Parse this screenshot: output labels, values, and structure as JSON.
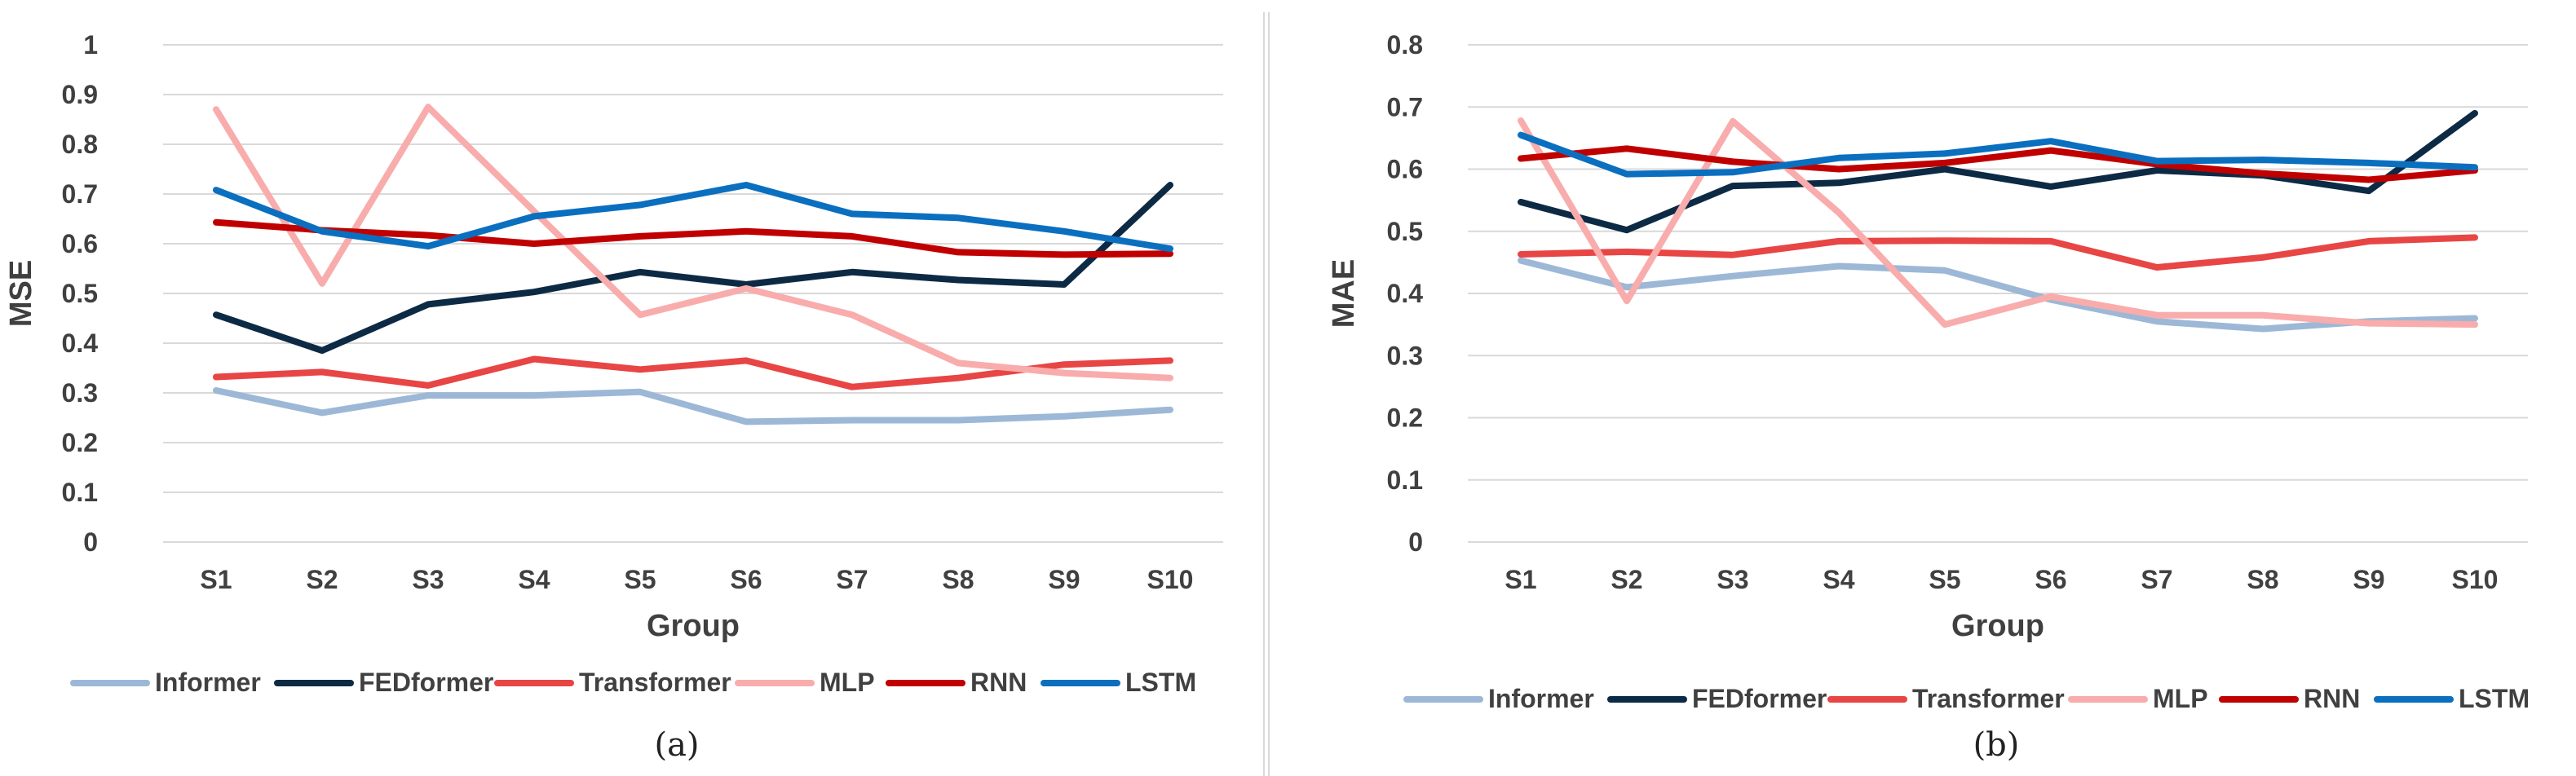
{
  "chart_data": [
    {
      "type": "line",
      "categories": [
        "S1",
        "S2",
        "S3",
        "S4",
        "S5",
        "S6",
        "S7",
        "S8",
        "S9",
        "S10"
      ],
      "xlabel": "Group",
      "ylabel": "MSE",
      "ylim": [
        0,
        1
      ],
      "yticks": [
        "0",
        "0.1",
        "0.2",
        "0.3",
        "0.4",
        "0.5",
        "0.6",
        "0.7",
        "0.8",
        "0.9",
        "1"
      ],
      "caption": "(a)",
      "series": [
        {
          "name": "Informer",
          "color": "#9DB8D6",
          "values": [
            0.305,
            0.26,
            0.295,
            0.295,
            0.302,
            0.242,
            0.245,
            0.245,
            0.253,
            0.266
          ]
        },
        {
          "name": "FEDformer",
          "color": "#0D2A45",
          "values": [
            0.457,
            0.385,
            0.478,
            0.503,
            0.543,
            0.518,
            0.543,
            0.527,
            0.518,
            0.718
          ]
        },
        {
          "name": "Transformer",
          "color": "#E84545",
          "values": [
            0.332,
            0.342,
            0.315,
            0.368,
            0.347,
            0.365,
            0.312,
            0.33,
            0.357,
            0.365
          ]
        },
        {
          "name": "MLP",
          "color": "#F9ACAC",
          "values": [
            0.87,
            0.52,
            0.875,
            0.665,
            0.457,
            0.51,
            0.457,
            0.36,
            0.34,
            0.33
          ]
        },
        {
          "name": "RNN",
          "color": "#C00000",
          "values": [
            0.643,
            0.627,
            0.617,
            0.6,
            0.615,
            0.625,
            0.615,
            0.583,
            0.578,
            0.58
          ]
        },
        {
          "name": "LSTM",
          "color": "#0B6FC0",
          "values": [
            0.708,
            0.625,
            0.595,
            0.655,
            0.678,
            0.718,
            0.66,
            0.652,
            0.625,
            0.59
          ]
        }
      ]
    },
    {
      "type": "line",
      "categories": [
        "S1",
        "S2",
        "S3",
        "S4",
        "S5",
        "S6",
        "S7",
        "S8",
        "S9",
        "S10"
      ],
      "xlabel": "Group",
      "ylabel": "MAE",
      "ylim": [
        0,
        0.8
      ],
      "yticks": [
        "0",
        "0.1",
        "0.2",
        "0.3",
        "0.4",
        "0.5",
        "0.6",
        "0.7",
        "0.8"
      ],
      "caption": "(b)",
      "series": [
        {
          "name": "Informer",
          "color": "#9DB8D6",
          "values": [
            0.453,
            0.41,
            0.428,
            0.444,
            0.437,
            0.39,
            0.355,
            0.343,
            0.355,
            0.36
          ]
        },
        {
          "name": "FEDformer",
          "color": "#0D2A45",
          "values": [
            0.547,
            0.502,
            0.573,
            0.578,
            0.6,
            0.572,
            0.598,
            0.59,
            0.565,
            0.69
          ]
        },
        {
          "name": "Transformer",
          "color": "#E84545",
          "values": [
            0.463,
            0.467,
            0.462,
            0.484,
            0.485,
            0.484,
            0.442,
            0.458,
            0.484,
            0.49
          ]
        },
        {
          "name": "MLP",
          "color": "#F9ACAC",
          "values": [
            0.678,
            0.388,
            0.677,
            0.53,
            0.35,
            0.395,
            0.365,
            0.365,
            0.352,
            0.35
          ]
        },
        {
          "name": "RNN",
          "color": "#C00000",
          "values": [
            0.617,
            0.633,
            0.612,
            0.6,
            0.61,
            0.63,
            0.608,
            0.593,
            0.583,
            0.598
          ]
        },
        {
          "name": "LSTM",
          "color": "#0B6FC0",
          "values": [
            0.655,
            0.592,
            0.595,
            0.618,
            0.625,
            0.645,
            0.613,
            0.615,
            0.61,
            0.603
          ]
        }
      ]
    }
  ]
}
